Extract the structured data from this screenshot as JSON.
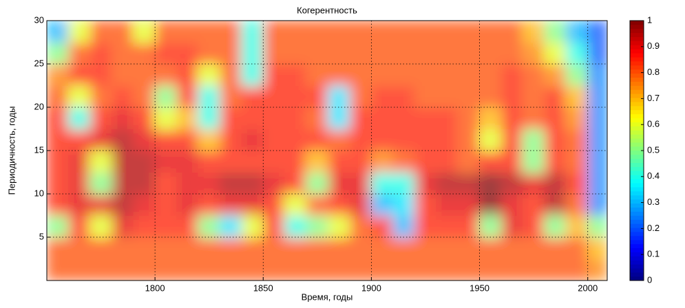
{
  "chart_data": {
    "type": "heatmap",
    "title": "Когерентность",
    "x_label": "Время, годы",
    "y_label": "Периодичность, годы",
    "x": [
      1750,
      1760,
      1770,
      1780,
      1790,
      1800,
      1810,
      1820,
      1830,
      1840,
      1850,
      1860,
      1870,
      1880,
      1890,
      1900,
      1910,
      1920,
      1930,
      1940,
      1950,
      1960,
      1970,
      1980,
      1990,
      2000,
      2009
    ],
    "y": [
      0,
      2.5,
      5,
      7.5,
      10,
      12.5,
      15,
      17.5,
      20,
      22.5,
      25,
      27.5,
      30
    ],
    "values": [
      [
        0.8,
        0.8,
        0.8,
        0.8,
        0.8,
        0.8,
        0.8,
        0.8,
        0.8,
        0.8,
        0.8,
        0.8,
        0.8,
        0.8,
        0.8,
        0.8,
        0.8,
        0.8,
        0.8,
        0.8,
        0.8,
        0.8,
        0.8,
        0.8,
        0.8,
        0.75
      ],
      [
        0.8,
        0.8,
        0.8,
        0.8,
        0.8,
        0.8,
        0.8,
        0.8,
        0.8,
        0.8,
        0.8,
        0.8,
        0.8,
        0.8,
        0.8,
        0.8,
        0.8,
        0.8,
        0.8,
        0.8,
        0.8,
        0.8,
        0.8,
        0.8,
        0.8,
        0.7
      ],
      [
        0.5,
        0.85,
        0.6,
        0.9,
        0.85,
        0.85,
        0.85,
        0.5,
        0.35,
        0.6,
        0.85,
        0.4,
        0.5,
        0.6,
        0.8,
        0.85,
        0.3,
        0.85,
        0.85,
        0.85,
        0.5,
        0.9,
        0.85,
        0.5,
        0.7,
        0.5
      ],
      [
        0.85,
        0.9,
        0.9,
        0.95,
        0.9,
        0.85,
        0.9,
        0.85,
        0.9,
        0.9,
        0.85,
        0.6,
        0.8,
        0.85,
        0.9,
        0.3,
        0.35,
        0.85,
        0.9,
        0.9,
        1.0,
        0.9,
        0.85,
        0.95,
        0.8,
        0.25
      ],
      [
        0.85,
        0.9,
        0.5,
        0.95,
        0.95,
        0.85,
        0.9,
        0.9,
        0.95,
        0.95,
        0.9,
        0.85,
        0.5,
        0.9,
        0.9,
        0.4,
        0.4,
        0.9,
        0.95,
        0.95,
        1.0,
        0.95,
        0.9,
        0.95,
        0.85,
        0.25
      ],
      [
        0.85,
        0.9,
        0.6,
        0.95,
        0.95,
        0.9,
        0.9,
        0.85,
        0.85,
        0.85,
        0.85,
        0.85,
        0.7,
        0.85,
        0.85,
        0.75,
        0.8,
        0.85,
        0.85,
        0.8,
        0.85,
        0.85,
        0.5,
        0.85,
        0.8,
        0.25
      ],
      [
        0.85,
        0.85,
        0.9,
        0.95,
        0.9,
        0.85,
        0.85,
        0.7,
        0.85,
        0.9,
        0.85,
        0.85,
        0.85,
        0.8,
        0.85,
        0.85,
        0.85,
        0.85,
        0.85,
        0.8,
        0.6,
        0.85,
        0.5,
        0.85,
        0.8,
        0.25
      ],
      [
        0.85,
        0.4,
        0.85,
        0.9,
        0.85,
        0.6,
        0.7,
        0.4,
        0.85,
        0.85,
        0.85,
        0.85,
        0.8,
        0.35,
        0.85,
        0.85,
        0.85,
        0.85,
        0.85,
        0.8,
        0.7,
        0.85,
        0.8,
        0.85,
        0.75,
        0.25
      ],
      [
        0.8,
        0.6,
        0.8,
        0.85,
        0.8,
        0.5,
        0.85,
        0.4,
        0.8,
        0.85,
        0.85,
        0.85,
        0.85,
        0.35,
        0.8,
        0.85,
        0.85,
        0.8,
        0.8,
        0.8,
        0.8,
        0.85,
        0.8,
        0.85,
        0.7,
        0.25
      ],
      [
        0.75,
        0.85,
        0.85,
        0.8,
        0.8,
        0.8,
        0.85,
        0.6,
        0.8,
        0.4,
        0.85,
        0.85,
        0.8,
        0.8,
        0.8,
        0.8,
        0.8,
        0.8,
        0.8,
        0.8,
        0.8,
        0.85,
        0.8,
        0.75,
        0.5,
        0.25
      ],
      [
        0.5,
        0.8,
        0.85,
        0.8,
        0.8,
        0.85,
        0.85,
        0.8,
        0.8,
        0.4,
        0.8,
        0.8,
        0.8,
        0.8,
        0.8,
        0.8,
        0.8,
        0.8,
        0.8,
        0.8,
        0.8,
        0.8,
        0.75,
        0.6,
        0.4,
        0.2
      ],
      [
        0.3,
        0.6,
        0.8,
        0.8,
        0.6,
        0.8,
        0.8,
        0.8,
        0.8,
        0.4,
        0.8,
        0.8,
        0.8,
        0.8,
        0.8,
        0.8,
        0.8,
        0.8,
        0.8,
        0.8,
        0.8,
        0.8,
        0.7,
        0.5,
        0.3,
        0.2
      ]
    ],
    "colormap": "jet",
    "xlim": [
      1750,
      2009
    ],
    "ylim": [
      0,
      30
    ],
    "xticks": [
      1800,
      1850,
      1900,
      1950,
      2000
    ],
    "yticks": [
      5,
      10,
      15,
      20,
      25,
      30
    ],
    "clim": [
      0,
      1
    ],
    "cticks": [
      0,
      0.1,
      0.2,
      0.3,
      0.4,
      0.5,
      0.6,
      0.7,
      0.8,
      0.9,
      1
    ],
    "grid": true
  }
}
